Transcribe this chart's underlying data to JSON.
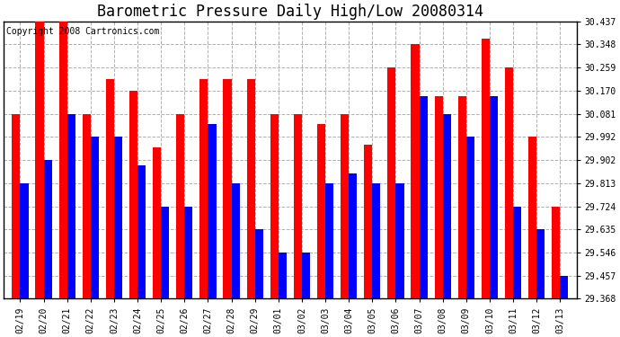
{
  "title": "Barometric Pressure Daily High/Low 20080314",
  "copyright": "Copyright 2008 Cartronics.com",
  "dates": [
    "02/19",
    "02/20",
    "02/21",
    "02/22",
    "02/23",
    "02/24",
    "02/25",
    "02/26",
    "02/27",
    "02/28",
    "02/29",
    "03/01",
    "03/02",
    "03/03",
    "03/04",
    "03/05",
    "03/06",
    "03/07",
    "03/08",
    "03/09",
    "03/10",
    "03/11",
    "03/12",
    "03/13"
  ],
  "highs": [
    30.081,
    30.437,
    30.437,
    30.081,
    30.215,
    30.17,
    29.95,
    30.081,
    30.215,
    30.215,
    30.215,
    30.081,
    30.081,
    30.04,
    30.081,
    29.96,
    30.259,
    30.348,
    30.15,
    30.15,
    30.37,
    30.259,
    29.992,
    29.724
  ],
  "lows": [
    29.813,
    29.902,
    30.081,
    29.992,
    29.992,
    29.883,
    29.724,
    29.724,
    30.04,
    29.813,
    29.635,
    29.546,
    29.546,
    29.813,
    29.85,
    29.813,
    29.813,
    30.15,
    30.081,
    29.992,
    30.15,
    29.724,
    29.635,
    29.457
  ],
  "ymin": 29.368,
  "ymax": 30.437,
  "yticks": [
    30.437,
    30.348,
    30.259,
    30.17,
    30.081,
    29.992,
    29.902,
    29.813,
    29.724,
    29.635,
    29.546,
    29.457,
    29.368
  ],
  "bar_width": 0.35,
  "high_color": "#ff0000",
  "low_color": "#0000ff",
  "bg_color": "#ffffff",
  "grid_color": "#b0b0b0",
  "title_fontsize": 12,
  "tick_fontsize": 7,
  "copyright_fontsize": 7
}
